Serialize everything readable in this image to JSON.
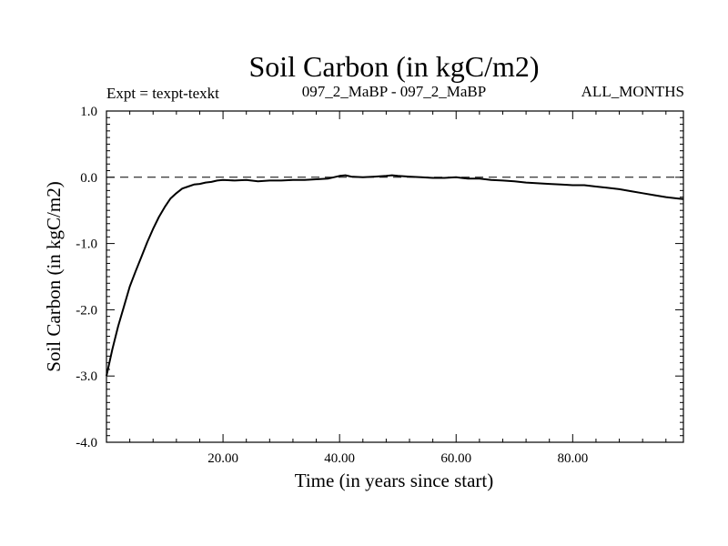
{
  "chart_data": {
    "type": "line",
    "title": "Soil Carbon (in kgC/m2)",
    "subtitle_left": "Expt = texpt-texkt",
    "subtitle_center": "097_2_MaBP - 097_2_MaBP",
    "subtitle_right": "ALL_MONTHS",
    "xlabel": "Time (in years since start)",
    "ylabel": "Soil Carbon (in kgC/m2)",
    "xlim": [
      0,
      99
    ],
    "ylim": [
      -4.0,
      1.0
    ],
    "x_ticks": [
      20,
      40,
      60,
      80
    ],
    "x_tick_labels": [
      "20.00",
      "40.00",
      "60.00",
      "80.00"
    ],
    "y_ticks": [
      1.0,
      0.0,
      -1.0,
      -2.0,
      -3.0,
      -4.0
    ],
    "y_tick_labels": [
      "1.0",
      "0.0",
      "-1.0",
      "-2.0",
      "-3.0",
      "-4.0"
    ],
    "reference_line": {
      "y": 0.0,
      "style": "dashed"
    },
    "grid": false,
    "series": [
      {
        "x": [
          0,
          1,
          2,
          3,
          4,
          5,
          6,
          7,
          8,
          9,
          10,
          11,
          12,
          13,
          14,
          15,
          16,
          17,
          18,
          19,
          20,
          22,
          24,
          26,
          28,
          30,
          32,
          34,
          36,
          38,
          40,
          41,
          42,
          44,
          46,
          48,
          49,
          50,
          52,
          54,
          56,
          58,
          60,
          62,
          64,
          66,
          68,
          70,
          72,
          74,
          76,
          78,
          80,
          82,
          84,
          86,
          88,
          90,
          92,
          94,
          96,
          98,
          99
        ],
        "y": [
          -3.0,
          -2.6,
          -2.25,
          -1.95,
          -1.65,
          -1.42,
          -1.2,
          -0.98,
          -0.78,
          -0.6,
          -0.45,
          -0.32,
          -0.24,
          -0.17,
          -0.14,
          -0.11,
          -0.1,
          -0.08,
          -0.07,
          -0.05,
          -0.04,
          -0.05,
          -0.04,
          -0.06,
          -0.05,
          -0.05,
          -0.04,
          -0.04,
          -0.03,
          -0.02,
          0.02,
          0.03,
          0.01,
          0.0,
          0.01,
          0.02,
          0.03,
          0.02,
          0.01,
          0.0,
          -0.01,
          -0.01,
          0.0,
          -0.02,
          -0.02,
          -0.04,
          -0.05,
          -0.06,
          -0.08,
          -0.09,
          -0.1,
          -0.11,
          -0.12,
          -0.12,
          -0.14,
          -0.16,
          -0.18,
          -0.21,
          -0.24,
          -0.27,
          -0.3,
          -0.32,
          -0.33
        ]
      }
    ]
  }
}
